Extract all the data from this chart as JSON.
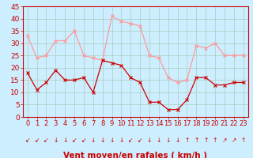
{
  "hours": [
    0,
    1,
    2,
    3,
    4,
    5,
    6,
    7,
    8,
    9,
    10,
    11,
    12,
    13,
    14,
    15,
    16,
    17,
    18,
    19,
    20,
    21,
    22,
    23
  ],
  "wind_avg": [
    18,
    11,
    14,
    19,
    15,
    15,
    16,
    10,
    23,
    22,
    21,
    16,
    14,
    6,
    6,
    3,
    3,
    7,
    16,
    16,
    13,
    13,
    14,
    14
  ],
  "wind_gust": [
    33,
    24,
    25,
    31,
    31,
    35,
    25,
    24,
    23,
    41,
    39,
    38,
    37,
    25,
    24,
    16,
    14,
    15,
    29,
    28,
    30,
    25,
    25,
    25
  ],
  "wind_dir_symbols": [
    "↙",
    "↙",
    "↙",
    "↓",
    "↓",
    "↙",
    "↙",
    "↓",
    "↓",
    "↓",
    "↓",
    "↙",
    "↙",
    "↓",
    "↓",
    "↓",
    "↓",
    "↑",
    "↑",
    "↑",
    "↑",
    "↗",
    "↗",
    "↑"
  ],
  "color_avg": "#cc0000",
  "color_gust": "#ff9999",
  "bg_color": "#cceeff",
  "grid_color": "#aaccbb",
  "xlabel": "Vent moyen/en rafales ( km/h )",
  "ylim": [
    0,
    45
  ],
  "yticks": [
    0,
    5,
    10,
    15,
    20,
    25,
    30,
    35,
    40,
    45
  ],
  "axis_color": "#cc0000",
  "label_color": "#cc0000",
  "tick_fontsize": 6.5,
  "xlabel_fontsize": 7.5
}
